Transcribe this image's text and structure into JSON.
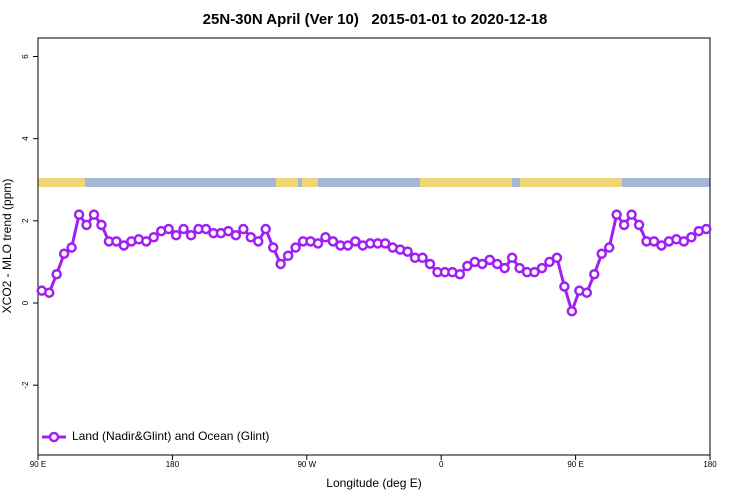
{
  "chart_data": {
    "type": "line",
    "title": "25N-30N April (Ver 10)   2015-01-01 to 2020-12-18",
    "xlabel": "Longitude (deg E)",
    "ylabel": "XCO2 - MLO trend (ppm)",
    "xlim": [
      90,
      540
    ],
    "ylim": [
      -3.7,
      6.45
    ],
    "xticks": [
      {
        "value": 90,
        "label": "90 E"
      },
      180,
      {
        "value": 270,
        "label": "90 W"
      },
      {
        "value": 360,
        "label": "0"
      },
      {
        "value": 450,
        "label": "90 E"
      },
      {
        "value": 540,
        "label": "180"
      }
    ],
    "yticks": [
      -2,
      0,
      2,
      4,
      6
    ],
    "legend": "bottomleft",
    "x": [
      92.5,
      97.5,
      102.5,
      107.5,
      112.5,
      117.5,
      122.5,
      127.5,
      132.5,
      137.5,
      142.5,
      147.5,
      152.5,
      157.5,
      162.5,
      167.5,
      172.5,
      177.5,
      182.5,
      187.5,
      192.5,
      197.5,
      202.5,
      207.5,
      212.5,
      217.5,
      222.5,
      227.5,
      232.5,
      237.5,
      242.5,
      247.5,
      252.5,
      257.5,
      262.5,
      267.5,
      272.5,
      277.5,
      282.5,
      287.5,
      292.5,
      297.5,
      302.5,
      307.5,
      312.5,
      317.5,
      322.5,
      327.5,
      332.5,
      337.5,
      342.5,
      347.5,
      352.5,
      357.5,
      362.5,
      367.5,
      372.5,
      377.5,
      382.5,
      387.5,
      392.5,
      397.5,
      402.5,
      407.5,
      412.5,
      417.5,
      422.5,
      427.5,
      432.5,
      437.5,
      442.5,
      447.5,
      452.5,
      457.5,
      462.5,
      467.5,
      472.5,
      477.5,
      482.5,
      487.5,
      492.5,
      497.5,
      502.5,
      507.5,
      512.5,
      517.5,
      522.5,
      527.5,
      532.5,
      537.5
    ],
    "series": [
      {
        "name": "Land (Nadir&Glint) and Ocean (Glint)",
        "color": "#a020f0",
        "values": [
          0.3,
          0.25,
          0.7,
          1.2,
          1.35,
          2.15,
          1.9,
          2.15,
          1.9,
          1.5,
          1.5,
          1.4,
          1.5,
          1.55,
          1.5,
          1.6,
          1.75,
          1.8,
          1.65,
          1.8,
          1.65,
          1.8,
          1.8,
          1.7,
          1.7,
          1.75,
          1.65,
          1.8,
          1.6,
          1.5,
          1.8,
          1.35,
          0.95,
          1.15,
          1.35,
          1.5,
          1.5,
          1.45,
          1.6,
          1.5,
          1.4,
          1.4,
          1.5,
          1.4,
          1.45,
          1.45,
          1.45,
          1.35,
          1.3,
          1.25,
          1.1,
          1.1,
          0.95,
          0.75,
          0.75,
          0.75,
          0.7,
          0.9,
          1.0,
          0.95,
          1.05,
          0.95,
          0.85,
          1.1,
          0.85,
          0.75,
          0.75,
          0.85,
          1.0,
          1.1,
          0.4,
          -0.2,
          0.3,
          0.25,
          0.7,
          1.2,
          1.35,
          2.15,
          1.9,
          2.15,
          1.9,
          1.5,
          1.5,
          1.4,
          1.5,
          1.55,
          1.5,
          1.6,
          1.75,
          1.8
        ]
      }
    ]
  }
}
